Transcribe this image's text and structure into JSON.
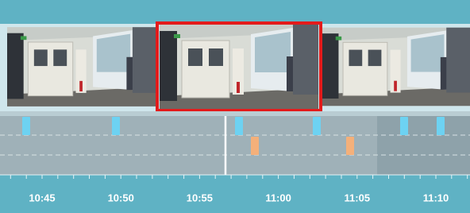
{
  "timeline": {
    "labels": [
      "10:45",
      "10:50",
      "10:55",
      "11:00",
      "11:05",
      "11:10"
    ]
  }
}
